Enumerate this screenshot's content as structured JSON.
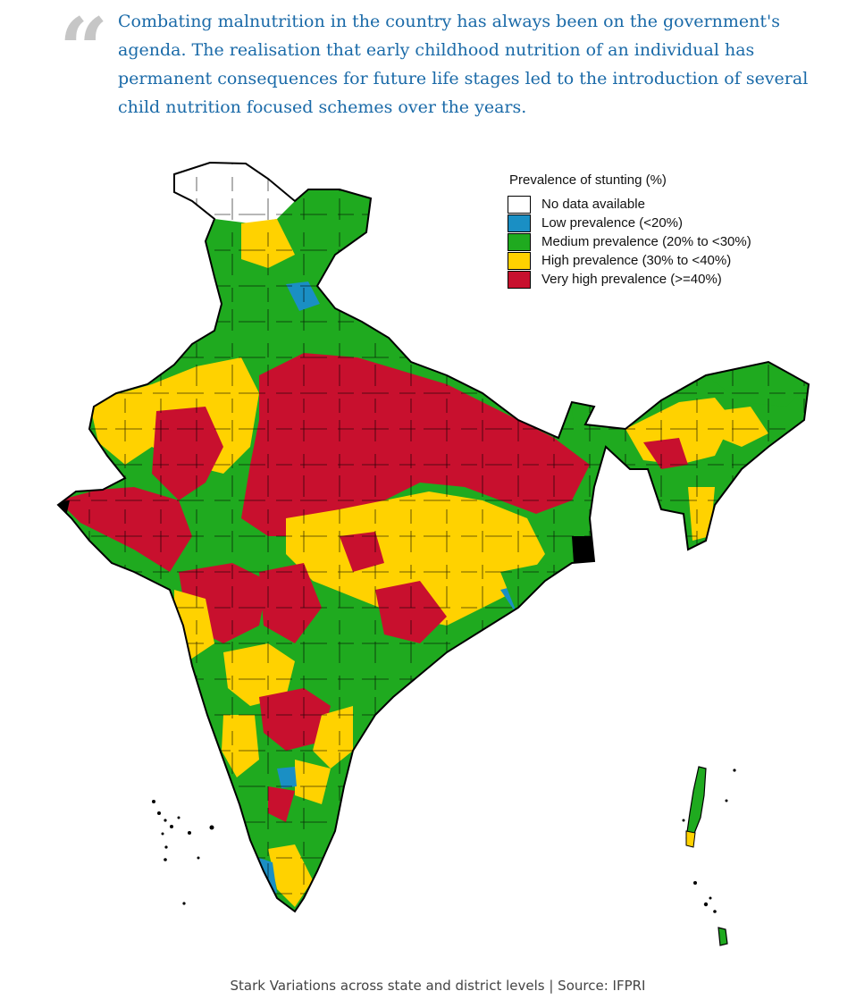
{
  "quote": {
    "mark": "“",
    "text": "Combating malnutrition in the country has always been on the government's agenda. The realisation that early childhood nutrition of an individual has permanent consequences for future life stages led to the introduction of several child nutrition focused schemes over the years."
  },
  "legend": {
    "title": "Prevalence of stunting (%)",
    "items": [
      {
        "label": "No data available",
        "color": "#ffffff"
      },
      {
        "label": "Low prevalence (<20%)",
        "color": "#1a8fc4"
      },
      {
        "label": "Medium prevalence (20% to <30%)",
        "color": "#1faa1f"
      },
      {
        "label": "High prevalence (30% to <40%)",
        "color": "#ffd200"
      },
      {
        "label": "Very high prevalence (>=40%)",
        "color": "#c8102e"
      }
    ]
  },
  "caption": "Stark Variations across state and district levels | Source: IFPRI"
}
